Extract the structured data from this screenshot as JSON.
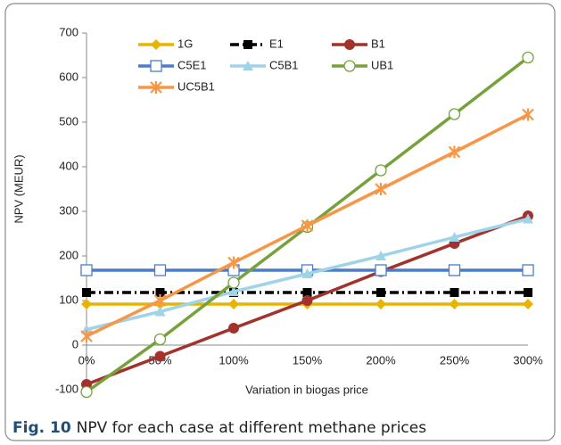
{
  "chart_data": {
    "type": "line",
    "ylabel": "NPV (MEUR)",
    "xlabel": "Variation in biogas price",
    "categories": [
      "0%",
      "50%",
      "100%",
      "150%",
      "200%",
      "250%",
      "300%"
    ],
    "ylim": [
      -100,
      700
    ],
    "yticks": [
      -100,
      0,
      100,
      200,
      300,
      400,
      500,
      600,
      700
    ],
    "series": [
      {
        "name": "1G",
        "color": "#e8b400",
        "marker": "diamond",
        "dash": "solid",
        "values": [
          92,
          92,
          92,
          92,
          92,
          92,
          92
        ]
      },
      {
        "name": "E1",
        "color": "#000000",
        "marker": "square",
        "dash": "dash-dot",
        "values": [
          118,
          118,
          118,
          118,
          118,
          118,
          118
        ]
      },
      {
        "name": "B1",
        "color": "#a3312c",
        "marker": "circle",
        "dash": "solid",
        "values": [
          -88,
          -25,
          38,
          100,
          165,
          228,
          290
        ]
      },
      {
        "name": "C5E1",
        "color": "#4a7cc9",
        "marker": "square-open",
        "dash": "solid",
        "values": [
          168,
          168,
          168,
          168,
          168,
          168,
          168
        ]
      },
      {
        "name": "C5B1",
        "color": "#9fd4e8",
        "marker": "triangle",
        "dash": "solid",
        "values": [
          35,
          75,
          120,
          160,
          200,
          242,
          283
        ]
      },
      {
        "name": "UB1",
        "color": "#77a23b",
        "marker": "circle-open",
        "dash": "solid",
        "values": [
          -105,
          13,
          140,
          265,
          392,
          518,
          645
        ]
      },
      {
        "name": "UC5B1",
        "color": "#f79646",
        "marker": "star",
        "dash": "solid",
        "values": [
          20,
          100,
          185,
          268,
          350,
          433,
          517
        ]
      }
    ]
  },
  "caption": {
    "label": "Fig. 10",
    "text": "NPV for each case at different methane prices"
  }
}
